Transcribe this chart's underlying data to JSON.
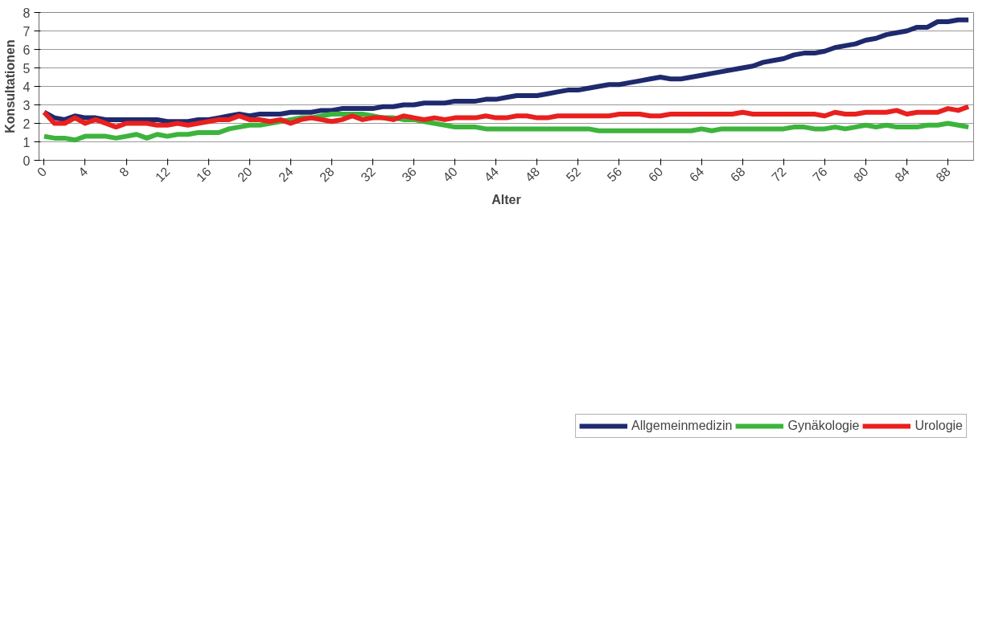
{
  "chart_data": {
    "type": "line",
    "xlabel": "Alter",
    "ylabel": "Konsultationen",
    "x": [
      0,
      1,
      2,
      3,
      4,
      5,
      6,
      7,
      8,
      9,
      10,
      11,
      12,
      13,
      14,
      15,
      16,
      17,
      18,
      19,
      20,
      21,
      22,
      23,
      24,
      25,
      26,
      27,
      28,
      29,
      30,
      31,
      32,
      33,
      34,
      35,
      36,
      37,
      38,
      39,
      40,
      41,
      42,
      43,
      44,
      45,
      46,
      47,
      48,
      49,
      50,
      51,
      52,
      53,
      54,
      55,
      56,
      57,
      58,
      59,
      60,
      61,
      62,
      63,
      64,
      65,
      66,
      67,
      68,
      69,
      70,
      71,
      72,
      73,
      74,
      75,
      76,
      77,
      78,
      79,
      80,
      81,
      82,
      83,
      84,
      85,
      86,
      87,
      88,
      89,
      90
    ],
    "xlim": [
      -0.5,
      90.5
    ],
    "xticks": [
      0,
      4,
      8,
      12,
      16,
      20,
      24,
      28,
      32,
      36,
      40,
      44,
      48,
      52,
      56,
      60,
      64,
      68,
      72,
      76,
      80,
      84,
      88
    ],
    "ylim": [
      0,
      8
    ],
    "yticks": [
      0,
      1,
      2,
      3,
      4,
      5,
      6,
      7,
      8
    ],
    "grid": "y",
    "legend": "bottom",
    "line_style": "solid",
    "marker": "none",
    "series": [
      {
        "name": "Allgemeinmedizin",
        "color": "#1f2a6e",
        "values": [
          2.6,
          2.3,
          2.2,
          2.4,
          2.3,
          2.3,
          2.2,
          2.2,
          2.2,
          2.2,
          2.2,
          2.2,
          2.1,
          2.1,
          2.1,
          2.2,
          2.2,
          2.3,
          2.4,
          2.5,
          2.4,
          2.5,
          2.5,
          2.5,
          2.6,
          2.6,
          2.6,
          2.7,
          2.7,
          2.8,
          2.8,
          2.8,
          2.8,
          2.9,
          2.9,
          3.0,
          3.0,
          3.1,
          3.1,
          3.1,
          3.2,
          3.2,
          3.2,
          3.3,
          3.3,
          3.4,
          3.5,
          3.5,
          3.5,
          3.6,
          3.7,
          3.8,
          3.8,
          3.9,
          4.0,
          4.1,
          4.1,
          4.2,
          4.3,
          4.4,
          4.5,
          4.4,
          4.4,
          4.5,
          4.6,
          4.7,
          4.8,
          4.9,
          5.0,
          5.1,
          5.3,
          5.4,
          5.5,
          5.7,
          5.8,
          5.8,
          5.9,
          6.1,
          6.2,
          6.3,
          6.5,
          6.6,
          6.8,
          6.9,
          7.0,
          7.2,
          7.2,
          7.5,
          7.5,
          7.6,
          7.6
        ]
      },
      {
        "name": "Gynäkologie",
        "color": "#3cb43c",
        "values": [
          1.3,
          1.2,
          1.2,
          1.1,
          1.3,
          1.3,
          1.3,
          1.2,
          1.3,
          1.4,
          1.2,
          1.4,
          1.3,
          1.4,
          1.4,
          1.5,
          1.5,
          1.5,
          1.7,
          1.8,
          1.9,
          1.9,
          2.0,
          2.1,
          2.2,
          2.3,
          2.3,
          2.4,
          2.5,
          2.5,
          2.5,
          2.5,
          2.4,
          2.3,
          2.3,
          2.2,
          2.2,
          2.1,
          2.0,
          1.9,
          1.8,
          1.8,
          1.8,
          1.7,
          1.7,
          1.7,
          1.7,
          1.7,
          1.7,
          1.7,
          1.7,
          1.7,
          1.7,
          1.7,
          1.6,
          1.6,
          1.6,
          1.6,
          1.6,
          1.6,
          1.6,
          1.6,
          1.6,
          1.6,
          1.7,
          1.6,
          1.7,
          1.7,
          1.7,
          1.7,
          1.7,
          1.7,
          1.7,
          1.8,
          1.8,
          1.7,
          1.7,
          1.8,
          1.7,
          1.8,
          1.9,
          1.8,
          1.9,
          1.8,
          1.8,
          1.8,
          1.9,
          1.9,
          2.0,
          1.9,
          1.8
        ]
      },
      {
        "name": "Urologie",
        "color": "#e8201e",
        "values": [
          2.6,
          2.0,
          2.0,
          2.3,
          2.0,
          2.2,
          2.0,
          1.8,
          2.0,
          2.0,
          2.0,
          1.9,
          1.9,
          2.0,
          1.9,
          2.0,
          2.1,
          2.2,
          2.2,
          2.4,
          2.2,
          2.2,
          2.1,
          2.2,
          2.0,
          2.2,
          2.3,
          2.2,
          2.1,
          2.2,
          2.4,
          2.2,
          2.3,
          2.3,
          2.2,
          2.4,
          2.3,
          2.2,
          2.3,
          2.2,
          2.3,
          2.3,
          2.3,
          2.4,
          2.3,
          2.3,
          2.4,
          2.4,
          2.3,
          2.3,
          2.4,
          2.4,
          2.4,
          2.4,
          2.4,
          2.4,
          2.5,
          2.5,
          2.5,
          2.4,
          2.4,
          2.5,
          2.5,
          2.5,
          2.5,
          2.5,
          2.5,
          2.5,
          2.6,
          2.5,
          2.5,
          2.5,
          2.5,
          2.5,
          2.5,
          2.5,
          2.4,
          2.6,
          2.5,
          2.5,
          2.6,
          2.6,
          2.6,
          2.7,
          2.5,
          2.6,
          2.6,
          2.6,
          2.8,
          2.7,
          2.9
        ]
      }
    ]
  }
}
